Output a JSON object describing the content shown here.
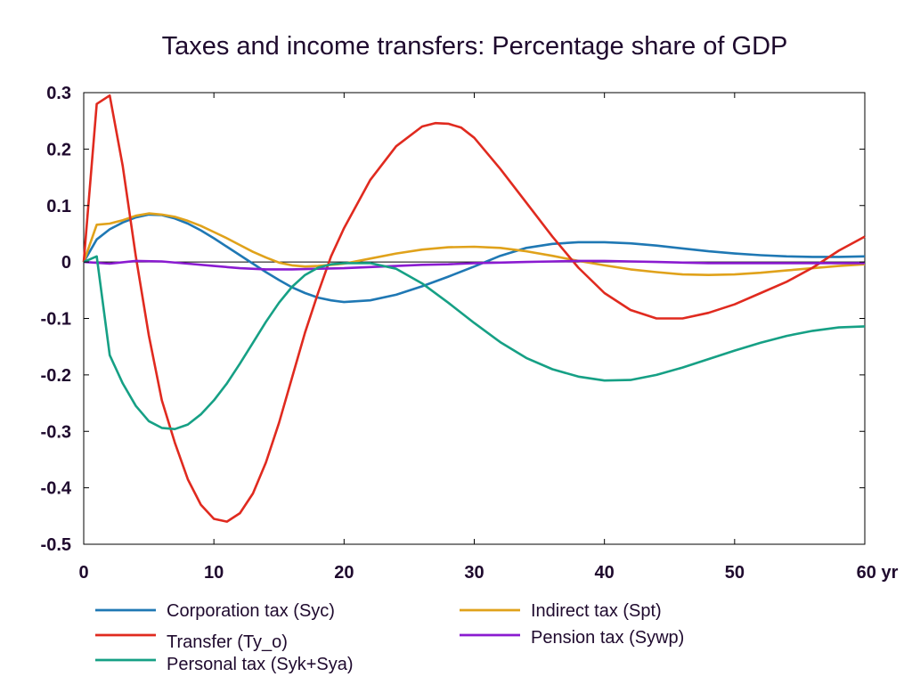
{
  "chart_data": {
    "type": "line",
    "title": "Taxes and income transfers: Percentage share of GDP",
    "xlabel": "",
    "ylabel": "",
    "xlim": [
      0,
      60
    ],
    "ylim": [
      -0.5,
      0.3
    ],
    "x_ticks": [
      {
        "value": 0,
        "label": "0"
      },
      {
        "value": 10,
        "label": "10"
      },
      {
        "value": 20,
        "label": "20"
      },
      {
        "value": 30,
        "label": "30"
      },
      {
        "value": 40,
        "label": "40"
      },
      {
        "value": 50,
        "label": "50"
      },
      {
        "value": 60,
        "label": "60 yr"
      }
    ],
    "y_ticks": [
      {
        "value": 0.3,
        "label": "0.3"
      },
      {
        "value": 0.2,
        "label": "0.2"
      },
      {
        "value": 0.1,
        "label": "0.1"
      },
      {
        "value": 0,
        "label": "0"
      },
      {
        "value": -0.1,
        "label": "-0.1"
      },
      {
        "value": -0.2,
        "label": "-0.2"
      },
      {
        "value": -0.3,
        "label": "-0.3"
      },
      {
        "value": -0.4,
        "label": "-0.4"
      },
      {
        "value": -0.5,
        "label": "-0.5"
      }
    ],
    "grid": false,
    "legend_position": "bottom",
    "series": [
      {
        "name": "Corporation tax (Syc)",
        "color": "#1f78b4",
        "x": [
          0,
          1,
          2,
          3,
          4,
          5,
          6,
          7,
          8,
          9,
          10,
          11,
          12,
          13,
          14,
          15,
          16,
          17,
          18,
          19,
          20,
          22,
          24,
          26,
          28,
          30,
          32,
          34,
          36,
          38,
          40,
          42,
          44,
          46,
          48,
          50,
          52,
          54,
          56,
          58,
          60
        ],
        "values": [
          0,
          0.04,
          0.058,
          0.07,
          0.079,
          0.084,
          0.083,
          0.077,
          0.068,
          0.056,
          0.042,
          0.027,
          0.012,
          -0.003,
          -0.018,
          -0.032,
          -0.045,
          -0.055,
          -0.063,
          -0.068,
          -0.071,
          -0.068,
          -0.058,
          -0.043,
          -0.026,
          -0.008,
          0.011,
          0.025,
          0.032,
          0.035,
          0.035,
          0.033,
          0.029,
          0.024,
          0.019,
          0.015,
          0.012,
          0.01,
          0.009,
          0.009,
          0.01
        ]
      },
      {
        "name": "Indirect tax (Spt)",
        "color": "#e0a21b",
        "x": [
          0,
          1,
          2,
          3,
          4,
          5,
          6,
          7,
          8,
          9,
          10,
          11,
          12,
          13,
          14,
          15,
          16,
          17,
          18,
          19,
          20,
          22,
          24,
          26,
          28,
          30,
          32,
          34,
          36,
          38,
          40,
          42,
          44,
          46,
          48,
          50,
          52,
          54,
          56,
          58,
          60
        ],
        "values": [
          0,
          0.066,
          0.068,
          0.074,
          0.082,
          0.086,
          0.084,
          0.08,
          0.073,
          0.064,
          0.053,
          0.042,
          0.03,
          0.018,
          0.008,
          -0.001,
          -0.006,
          -0.008,
          -0.007,
          -0.005,
          -0.003,
          0.006,
          0.015,
          0.022,
          0.026,
          0.027,
          0.025,
          0.019,
          0.011,
          0.002,
          -0.006,
          -0.013,
          -0.018,
          -0.022,
          -0.023,
          -0.022,
          -0.019,
          -0.015,
          -0.011,
          -0.007,
          -0.004
        ]
      },
      {
        "name": "Transfer (Ty_o)",
        "color": "#e02a1f",
        "x": [
          0,
          1,
          2,
          3,
          4,
          5,
          6,
          7,
          8,
          9,
          10,
          11,
          12,
          13,
          14,
          15,
          16,
          17,
          18,
          19,
          20,
          22,
          24,
          26,
          27,
          28,
          29,
          30,
          32,
          34,
          36,
          38,
          40,
          42,
          44,
          46,
          48,
          50,
          52,
          54,
          56,
          58,
          60
        ],
        "values": [
          0,
          0.28,
          0.295,
          0.17,
          0.01,
          -0.13,
          -0.245,
          -0.32,
          -0.385,
          -0.43,
          -0.455,
          -0.46,
          -0.445,
          -0.41,
          -0.355,
          -0.285,
          -0.205,
          -0.125,
          -0.055,
          0.01,
          0.06,
          0.145,
          0.205,
          0.24,
          0.246,
          0.245,
          0.238,
          0.22,
          0.165,
          0.105,
          0.045,
          -0.01,
          -0.055,
          -0.085,
          -0.1,
          -0.1,
          -0.09,
          -0.075,
          -0.055,
          -0.035,
          -0.01,
          0.02,
          0.045
        ]
      },
      {
        "name": "Pension tax (Sywp)",
        "color": "#8a1bd0",
        "x": [
          0,
          2,
          4,
          6,
          8,
          10,
          12,
          14,
          16,
          18,
          20,
          22,
          24,
          26,
          28,
          30,
          32,
          34,
          36,
          38,
          40,
          42,
          44,
          46,
          48,
          50,
          52,
          54,
          56,
          58,
          60
        ],
        "values": [
          0,
          -0.003,
          0.002,
          0.001,
          -0.003,
          -0.007,
          -0.011,
          -0.013,
          -0.013,
          -0.012,
          -0.011,
          -0.009,
          -0.007,
          -0.005,
          -0.004,
          -0.002,
          -0.001,
          0,
          0.001,
          0.002,
          0.002,
          0.001,
          0,
          -0.001,
          -0.002,
          -0.002,
          -0.002,
          -0.002,
          -0.002,
          -0.002,
          -0.002
        ]
      },
      {
        "name": "Personal tax (Syk+Sya)",
        "color": "#16a085",
        "x": [
          0,
          1,
          2,
          3,
          4,
          5,
          6,
          7,
          8,
          9,
          10,
          11,
          12,
          13,
          14,
          15,
          16,
          17,
          18,
          19,
          20,
          22,
          24,
          26,
          28,
          30,
          32,
          34,
          36,
          38,
          40,
          42,
          44,
          46,
          48,
          50,
          52,
          54,
          56,
          58,
          60
        ],
        "values": [
          0,
          0.01,
          -0.165,
          -0.215,
          -0.255,
          -0.282,
          -0.294,
          -0.296,
          -0.288,
          -0.27,
          -0.245,
          -0.215,
          -0.18,
          -0.143,
          -0.106,
          -0.072,
          -0.044,
          -0.023,
          -0.01,
          -0.004,
          -0.002,
          -0.002,
          -0.012,
          -0.038,
          -0.072,
          -0.108,
          -0.142,
          -0.17,
          -0.19,
          -0.203,
          -0.21,
          -0.209,
          -0.2,
          -0.187,
          -0.172,
          -0.157,
          -0.143,
          -0.131,
          -0.122,
          -0.116,
          -0.114
        ]
      }
    ]
  }
}
